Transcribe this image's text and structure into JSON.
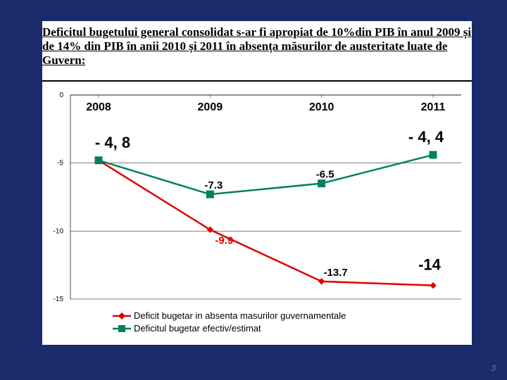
{
  "slide": {
    "background_color": "#1a2b6b",
    "page_number": "3"
  },
  "title": {
    "text": "Deficitul bugetului general consolidat s-ar fi apropiat de 10%din PIB în anul 2009 și de 14% din PIB în anii 2010 și 2011 în absența măsurilor de austeritate luate de Guvern:",
    "font_family": "Times New Roman, serif",
    "font_size_pt": 17,
    "font_weight": "bold",
    "underline": true,
    "color": "#000000"
  },
  "chart": {
    "type": "line",
    "background_color": "#ffffff",
    "plot_border_color": "#000000",
    "ylim": [
      -15,
      0
    ],
    "ytick_values": [
      0,
      -5,
      -10,
      -15
    ],
    "ytick_labels": [
      "0",
      "-5",
      "-10",
      "-15"
    ],
    "ytick_fontsize": 10,
    "ytick_color": "#000000",
    "grid_color": "#000000",
    "grid_width": 0.5,
    "categories": [
      "2008",
      "2009",
      "2010",
      "2011"
    ],
    "category_label_fontsize": 16,
    "category_label_weight": "bold",
    "category_label_color": "#000000",
    "series": [
      {
        "name": "Deficit bugetar in absenta masurilor guvernamentale",
        "color": "#e00000",
        "line_width": 2.5,
        "marker": "diamond",
        "marker_size": 8,
        "values": [
          -4.8,
          -9.9,
          -13.7,
          -14.0
        ],
        "labels": [
          "- 4, 8",
          "-9.9",
          "-13.7",
          "-14"
        ]
      },
      {
        "name": "Deficitul bugetar efectiv/estimat",
        "color": "#008060",
        "line_width": 2.5,
        "marker": "square",
        "marker_size": 10,
        "values": [
          -4.8,
          -7.3,
          -6.5,
          -4.4
        ],
        "labels": [
          "- 4, 8",
          "-7.3",
          "-6.5",
          "- 4, 4"
        ]
      }
    ],
    "data_label_styles": {
      "shared_2008": {
        "text": "- 4, 8",
        "fontsize": 22,
        "weight": "bold",
        "color": "#000"
      },
      "red_2009": {
        "text": "-9.9",
        "fontsize": 15,
        "weight": "bold",
        "color": "#e00000"
      },
      "red_2010": {
        "text": "-13.7",
        "fontsize": 15,
        "weight": "bold",
        "color": "#000"
      },
      "red_2011": {
        "text": "-14",
        "fontsize": 22,
        "weight": "bold",
        "color": "#000"
      },
      "green_2009": {
        "text": "-7.3",
        "fontsize": 15,
        "weight": "bold",
        "color": "#000"
      },
      "green_2010": {
        "text": "-6.5",
        "fontsize": 15,
        "weight": "bold",
        "color": "#000"
      },
      "green_2011": {
        "text": "- 4, 4",
        "fontsize": 22,
        "weight": "bold",
        "color": "#000"
      }
    },
    "legend": {
      "position": "bottom",
      "fontsize": 13,
      "color": "#000000"
    }
  }
}
